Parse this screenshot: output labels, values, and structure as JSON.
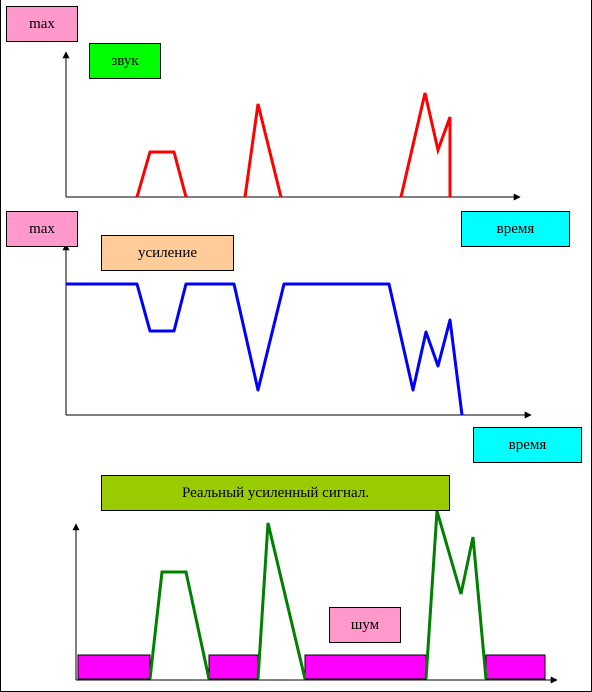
{
  "panel1": {
    "max_label": "max",
    "signal_label": "звук"
  },
  "panel2": {
    "max_label": "max",
    "signal_label": "усиление",
    "time_label": "время",
    "time_label_top": "время"
  },
  "panel3": {
    "title": "Реальный усиленный сигнал.",
    "noise_label": "шум"
  },
  "colors": {
    "pink": "#FF99CC",
    "green_label": "#00FF00",
    "peach": "#FFCC99",
    "cyan": "#00FFFF",
    "olive": "#99CC00",
    "magenta": "#FF00FF",
    "red": "#FF0000",
    "blue": "#0000FF",
    "dark_green": "#008000"
  }
}
